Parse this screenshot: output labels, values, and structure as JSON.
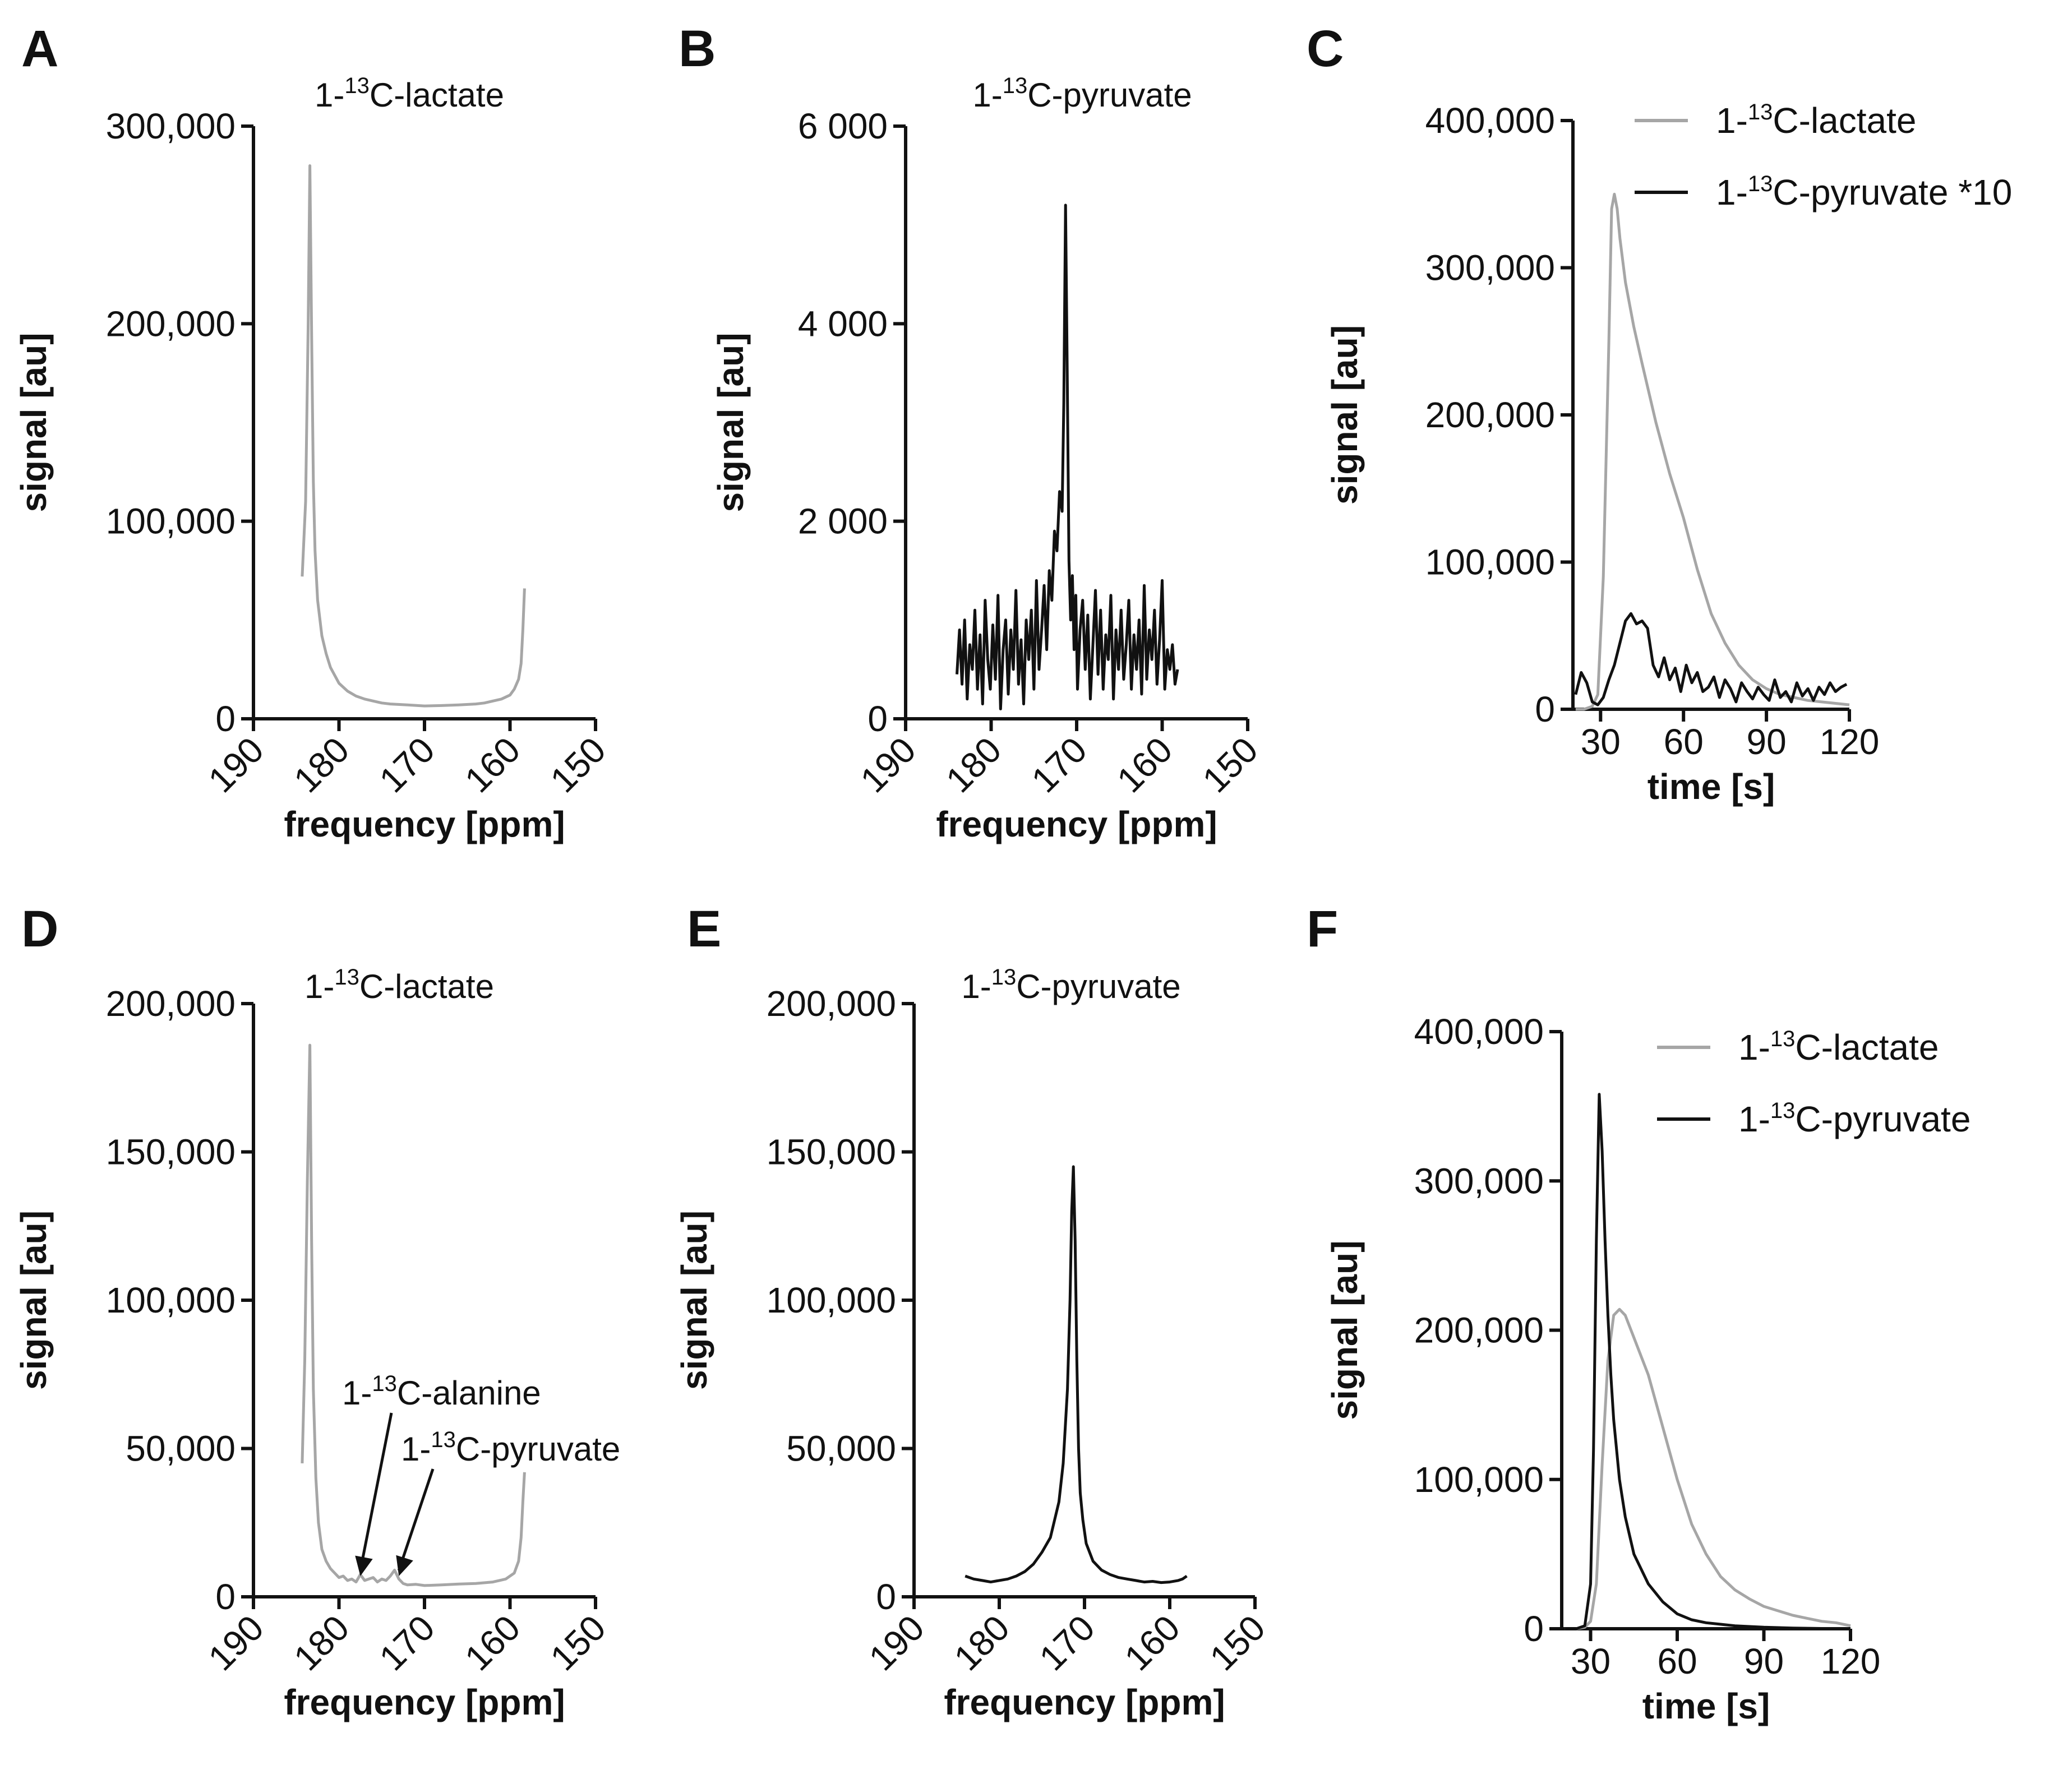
{
  "colors": {
    "lactate": "#a6a6a6",
    "pyruvate": "#111111",
    "axis": "#111111"
  },
  "chart_data": [
    {
      "id": "A",
      "type": "line",
      "letter": "A",
      "title": {
        "pre": "1-",
        "sup": "13",
        "post": "C-lactate"
      },
      "xlabel": "frequency [ppm]",
      "ylabel": "signal [au]",
      "xlim": [
        190,
        150
      ],
      "ylim": [
        0,
        300000
      ],
      "xticks": [
        190,
        180,
        170,
        160,
        150
      ],
      "yticks": [
        0,
        100000,
        200000,
        300000
      ],
      "ytick_labels": [
        "0",
        "100,000",
        "200,000",
        "300,000"
      ],
      "xtick_labels": [
        "190",
        "180",
        "170",
        "160",
        "150"
      ],
      "series": [
        {
          "name": "1-13C-lactate",
          "color": "lactate",
          "x": [
            184.3,
            183.9,
            183.6,
            183.4,
            183.2,
            183.0,
            182.8,
            182.5,
            182.0,
            181.5,
            181.0,
            180.0,
            179.0,
            178.0,
            177.0,
            176.0,
            175.0,
            174.0,
            172.0,
            170.0,
            168.0,
            166.0,
            164.0,
            163.0,
            162.0,
            161.0,
            160.0,
            159.5,
            159.0,
            158.7,
            158.5,
            158.3
          ],
          "y": [
            72000,
            110000,
            200000,
            280000,
            195000,
            120000,
            85000,
            60000,
            42000,
            33000,
            26000,
            18000,
            14000,
            11500,
            10000,
            9000,
            8000,
            7500,
            7000,
            6500,
            6700,
            7000,
            7500,
            8000,
            9000,
            10000,
            12000,
            15000,
            20000,
            28000,
            45000,
            66000
          ]
        }
      ]
    },
    {
      "id": "B",
      "type": "line",
      "letter": "B",
      "title": {
        "pre": "1-",
        "sup": "13",
        "post": "C-pyruvate"
      },
      "xlabel": "frequency [ppm]",
      "ylabel": "signal [au]",
      "xlim": [
        190,
        150
      ],
      "ylim": [
        0,
        6000
      ],
      "xticks": [
        190,
        180,
        170,
        160,
        150
      ],
      "yticks": [
        0,
        2000,
        4000,
        6000
      ],
      "ytick_labels": [
        "0",
        "2 000",
        "4 000",
        "6 000"
      ],
      "xtick_labels": [
        "190",
        "180",
        "170",
        "160",
        "150"
      ],
      "series": [
        {
          "name": "1-13C-pyruvate",
          "color": "pyruvate",
          "x": [
            184.0,
            183.7,
            183.4,
            183.1,
            182.8,
            182.5,
            182.2,
            181.9,
            181.6,
            181.3,
            181.0,
            180.7,
            180.4,
            180.1,
            179.8,
            179.5,
            179.2,
            178.9,
            178.6,
            178.3,
            178.0,
            177.7,
            177.4,
            177.1,
            176.8,
            176.5,
            176.2,
            175.9,
            175.6,
            175.3,
            175.0,
            174.7,
            174.4,
            174.1,
            173.8,
            173.5,
            173.2,
            172.9,
            172.6,
            172.3,
            172.0,
            171.7,
            171.5,
            171.3,
            171.1,
            170.9,
            170.7,
            170.5,
            170.3,
            170.1,
            169.9,
            169.6,
            169.3,
            169.0,
            168.7,
            168.4,
            168.1,
            167.8,
            167.5,
            167.2,
            166.9,
            166.6,
            166.3,
            166.0,
            165.7,
            165.4,
            165.1,
            164.8,
            164.5,
            164.2,
            163.9,
            163.6,
            163.3,
            163.0,
            162.7,
            162.4,
            162.1,
            161.8,
            161.5,
            161.2,
            160.9,
            160.6,
            160.3,
            160.0,
            159.7,
            159.4,
            159.1,
            158.8,
            158.5,
            158.2
          ],
          "y": [
            450,
            900,
            350,
            1000,
            200,
            750,
            500,
            1100,
            300,
            850,
            150,
            1200,
            600,
            300,
            950,
            400,
            1250,
            100,
            700,
            1000,
            250,
            900,
            500,
            1300,
            350,
            800,
            150,
            1000,
            600,
            1100,
            300,
            1400,
            500,
            900,
            1350,
            700,
            1500,
            1200,
            1900,
            1700,
            2300,
            2100,
            3200,
            5200,
            3500,
            1600,
            1000,
            1450,
            700,
            1250,
            300,
            900,
            1200,
            500,
            1050,
            200,
            750,
            1300,
            450,
            1100,
            300,
            850,
            600,
            1250,
            200,
            900,
            500,
            1100,
            400,
            750,
            1200,
            300,
            850,
            500,
            1000,
            250,
            1350,
            400,
            900,
            600,
            1100,
            350,
            800,
            1400,
            300,
            700,
            500,
            750,
            350,
            500
          ]
        }
      ]
    },
    {
      "id": "C",
      "type": "line",
      "letter": "C",
      "xlabel": "time [s]",
      "ylabel": "signal [au]",
      "xlim": [
        20,
        120
      ],
      "ylim": [
        0,
        400000
      ],
      "xticks": [
        30,
        60,
        90,
        120
      ],
      "yticks": [
        0,
        100000,
        200000,
        300000,
        400000
      ],
      "ytick_labels": [
        "0",
        "100,000",
        "200,000",
        "300,000",
        "400,000"
      ],
      "xtick_labels": [
        "30",
        "60",
        "90",
        "120"
      ],
      "legend": [
        {
          "color": "lactate",
          "pre": "1-",
          "sup": "13",
          "post": "C-lactate"
        },
        {
          "color": "pyruvate",
          "pre": "1-",
          "sup": "13",
          "post": "C-pyruvate *10"
        }
      ],
      "series": [
        {
          "name": "1-13C-lactate",
          "color": "lactate",
          "x": [
            21,
            24,
            27,
            29,
            31,
            33,
            34,
            35,
            36,
            37,
            39,
            42,
            45,
            50,
            55,
            60,
            65,
            70,
            75,
            80,
            85,
            90,
            95,
            100,
            105,
            110,
            115,
            120
          ],
          "y": [
            0,
            0,
            2000,
            10000,
            90000,
            250000,
            340000,
            350000,
            340000,
            320000,
            290000,
            260000,
            235000,
            195000,
            160000,
            130000,
            95000,
            65000,
            45000,
            30000,
            20000,
            14000,
            10000,
            8000,
            6000,
            5000,
            4000,
            3000
          ]
        },
        {
          "name": "1-13C-pyruvate *10",
          "color": "pyruvate",
          "x": [
            21,
            23,
            25,
            27,
            29,
            31,
            33,
            35,
            37,
            39,
            41,
            43,
            45,
            47,
            49,
            51,
            53,
            55,
            57,
            59,
            61,
            63,
            65,
            67,
            69,
            71,
            73,
            75,
            77,
            79,
            81,
            83,
            85,
            87,
            89,
            91,
            93,
            95,
            97,
            99,
            101,
            103,
            105,
            107,
            109,
            111,
            113,
            115,
            117,
            119
          ],
          "y": [
            10000,
            25000,
            18000,
            5000,
            3000,
            8000,
            20000,
            30000,
            45000,
            60000,
            65000,
            58000,
            60000,
            55000,
            30000,
            22000,
            35000,
            20000,
            28000,
            12000,
            30000,
            18000,
            25000,
            12000,
            15000,
            22000,
            8000,
            20000,
            14000,
            5000,
            18000,
            12000,
            7000,
            15000,
            10000,
            6000,
            20000,
            8000,
            12000,
            5000,
            18000,
            9000,
            14000,
            6000,
            15000,
            10000,
            18000,
            12000,
            15000,
            17000
          ]
        }
      ]
    },
    {
      "id": "D",
      "type": "line",
      "letter": "D",
      "title": {
        "pre": "1-",
        "sup": "13",
        "post": "C-lactate"
      },
      "xlabel": "frequency [ppm]",
      "ylabel": "signal [au]",
      "xlim": [
        190,
        150
      ],
      "ylim": [
        0,
        200000
      ],
      "xticks": [
        190,
        180,
        170,
        160,
        150
      ],
      "yticks": [
        0,
        50000,
        100000,
        150000,
        200000
      ],
      "ytick_labels": [
        "0",
        "50,000",
        "100,000",
        "150,000",
        "200,000"
      ],
      "xtick_labels": [
        "190",
        "180",
        "170",
        "160",
        "150"
      ],
      "annotations": [
        {
          "pre": "1-",
          "sup": "13",
          "post": "C-alanine",
          "x": 177.5,
          "y": 7000
        },
        {
          "pre": "1-",
          "sup": "13",
          "post": "C-pyruvate",
          "x": 173.0,
          "y": 7000
        }
      ],
      "series": [
        {
          "name": "1-13C-lactate",
          "color": "lactate",
          "x": [
            184.3,
            184.0,
            183.7,
            183.4,
            183.2,
            183.0,
            182.7,
            182.4,
            182.0,
            181.5,
            181.0,
            180.5,
            180.0,
            179.5,
            179.0,
            178.5,
            178.0,
            177.5,
            177.0,
            176.5,
            176.0,
            175.5,
            175.0,
            174.5,
            174.0,
            173.5,
            173.0,
            172.5,
            172.0,
            171.0,
            170.0,
            168.0,
            166.0,
            164.0,
            162.0,
            160.5,
            159.5,
            159.0,
            158.7,
            158.5,
            158.3
          ],
          "y": [
            45000,
            80000,
            140000,
            186000,
            120000,
            70000,
            40000,
            25000,
            16000,
            12000,
            9500,
            8000,
            6500,
            7000,
            5500,
            6000,
            5000,
            7500,
            5500,
            6000,
            6500,
            5000,
            6000,
            5500,
            7000,
            9000,
            6000,
            4500,
            4000,
            4200,
            3800,
            4000,
            4300,
            4500,
            5000,
            6000,
            8000,
            12000,
            20000,
            32000,
            42000
          ]
        }
      ]
    },
    {
      "id": "E",
      "type": "line",
      "letter": "E",
      "title": {
        "pre": "1-",
        "sup": "13",
        "post": "C-pyruvate"
      },
      "xlabel": "frequency [ppm]",
      "ylabel": "signal [au]",
      "xlim": [
        190,
        150
      ],
      "ylim": [
        0,
        200000
      ],
      "xticks": [
        190,
        180,
        170,
        160,
        150
      ],
      "yticks": [
        0,
        50000,
        100000,
        150000,
        200000
      ],
      "ytick_labels": [
        "0",
        "50,000",
        "100,000",
        "150,000",
        "200,000"
      ],
      "xtick_labels": [
        "190",
        "180",
        "170",
        "160",
        "150"
      ],
      "series": [
        {
          "name": "1-13C-pyruvate",
          "color": "pyruvate",
          "x": [
            184.0,
            183.0,
            182.0,
            181.0,
            180.0,
            179.0,
            178.0,
            177.0,
            176.0,
            175.0,
            174.0,
            173.0,
            172.5,
            172.0,
            171.7,
            171.5,
            171.3,
            171.1,
            170.9,
            170.7,
            170.5,
            170.2,
            169.8,
            169.0,
            168.0,
            167.0,
            166.0,
            165.0,
            164.0,
            163.0,
            162.0,
            161.0,
            160.0,
            159.0,
            158.5,
            158.0
          ],
          "y": [
            7000,
            6000,
            5500,
            5000,
            5500,
            6000,
            7000,
            8500,
            11000,
            15000,
            20000,
            32000,
            45000,
            70000,
            100000,
            130000,
            145000,
            120000,
            80000,
            50000,
            35000,
            26000,
            18000,
            12000,
            9000,
            7500,
            6500,
            6000,
            5500,
            5000,
            5200,
            4800,
            5000,
            5500,
            6000,
            7000
          ]
        }
      ]
    },
    {
      "id": "F",
      "type": "line",
      "letter": "F",
      "xlabel": "time [s]",
      "ylabel": "signal [au]",
      "xlim": [
        20,
        120
      ],
      "ylim": [
        0,
        400000
      ],
      "xticks": [
        30,
        60,
        90,
        120
      ],
      "yticks": [
        0,
        100000,
        200000,
        300000,
        400000
      ],
      "ytick_labels": [
        "0",
        "100,000",
        "200,000",
        "300,000",
        "400,000"
      ],
      "xtick_labels": [
        "30",
        "60",
        "90",
        "120"
      ],
      "legend": [
        {
          "color": "lactate",
          "pre": "1-",
          "sup": "13",
          "post": "C-lactate"
        },
        {
          "color": "pyruvate",
          "pre": "1-",
          "sup": "13",
          "post": "C-pyruvate"
        }
      ],
      "series": [
        {
          "name": "1-13C-lactate",
          "color": "lactate",
          "x": [
            21,
            25,
            28,
            30,
            32,
            34,
            36,
            38,
            40,
            42,
            45,
            50,
            55,
            60,
            65,
            70,
            75,
            80,
            85,
            90,
            95,
            100,
            105,
            110,
            115,
            120
          ],
          "y": [
            0,
            0,
            1000,
            5000,
            30000,
            110000,
            180000,
            210000,
            214000,
            210000,
            195000,
            170000,
            135000,
            100000,
            70000,
            50000,
            35000,
            26000,
            20000,
            15000,
            12000,
            9000,
            7000,
            5000,
            4000,
            2000
          ]
        },
        {
          "name": "1-13C-pyruvate",
          "color": "pyruvate",
          "x": [
            21,
            25,
            28,
            30,
            31,
            32,
            33,
            34,
            35,
            36,
            37,
            38,
            40,
            42,
            45,
            50,
            55,
            60,
            65,
            70,
            75,
            80,
            85,
            90,
            100,
            110,
            120
          ],
          "y": [
            0,
            0,
            2000,
            30000,
            120000,
            260000,
            358000,
            320000,
            260000,
            210000,
            170000,
            140000,
            100000,
            75000,
            50000,
            30000,
            18000,
            10000,
            6000,
            4000,
            3000,
            2000,
            1500,
            1000,
            500,
            200,
            0
          ]
        }
      ]
    }
  ]
}
